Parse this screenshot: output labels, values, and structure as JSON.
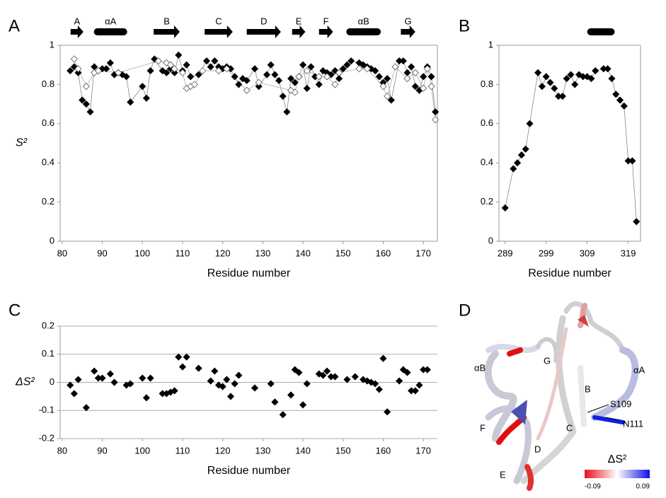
{
  "chart_data": [
    {
      "type": "scatter",
      "panel": "A",
      "x_label": "Residue number",
      "y_label": "S²",
      "xlim": [
        79.5,
        173.5
      ],
      "ylim": [
        0,
        1
      ],
      "xticks": [
        80,
        90,
        100,
        110,
        120,
        130,
        140,
        150,
        160,
        170
      ],
      "yticks": [
        0,
        0.2,
        0.4,
        0.6,
        0.8,
        1
      ],
      "grid": false,
      "frame": true,
      "secondary_structure": [
        {
          "label": "A",
          "type": "strand",
          "start": 82.1,
          "end": 85.3
        },
        {
          "label": "αA",
          "type": "helix",
          "start": 87.9,
          "end": 96.2
        },
        {
          "label": "B",
          "type": "strand",
          "start": 102.8,
          "end": 109.3
        },
        {
          "label": "C",
          "type": "strand",
          "start": 115.5,
          "end": 122.5
        },
        {
          "label": "D",
          "type": "strand",
          "start": 126,
          "end": 134.5
        },
        {
          "label": "E",
          "type": "strand",
          "start": 137.3,
          "end": 140.6
        },
        {
          "label": "F",
          "type": "strand",
          "start": 144,
          "end": 147.5
        },
        {
          "label": "αB",
          "type": "helix",
          "start": 150.8,
          "end": 159.4
        },
        {
          "label": "G",
          "type": "strand",
          "start": 164.4,
          "end": 168
        }
      ],
      "series": [
        {
          "color": "#000000",
          "marker": "filled",
          "line_color": "#888888",
          "x": [
            82,
            83,
            84,
            85,
            86,
            87,
            88,
            89,
            90,
            91,
            92,
            93,
            94,
            95,
            96,
            97,
            100,
            101,
            102,
            103,
            105,
            106,
            107,
            108,
            109,
            110,
            111,
            112,
            114,
            116,
            117,
            118,
            119,
            120,
            121,
            122,
            123,
            124,
            125,
            126,
            128,
            129,
            131,
            132,
            133,
            134,
            135,
            136,
            137,
            138,
            139,
            140,
            141,
            142,
            143,
            144,
            145,
            146,
            147,
            148,
            149,
            150,
            151,
            152,
            154,
            155,
            156,
            157,
            158,
            159,
            160,
            161,
            162,
            164,
            165,
            166,
            167,
            168,
            169,
            170,
            171,
            172,
            173
          ],
          "values": [
            0.87,
            0.89,
            0.86,
            0.72,
            0.7,
            0.66,
            0.89,
            0.87,
            0.88,
            0.88,
            0.91,
            0.85,
            0.86,
            0.85,
            0.84,
            0.71,
            0.79,
            0.73,
            0.87,
            0.93,
            0.87,
            0.86,
            0.88,
            0.86,
            0.95,
            0.87,
            0.9,
            0.84,
            0.85,
            0.92,
            0.89,
            0.92,
            0.89,
            0.88,
            0.89,
            0.88,
            0.84,
            0.8,
            0.83,
            0.82,
            0.88,
            0.79,
            0.85,
            0.9,
            0.85,
            0.82,
            0.74,
            0.66,
            0.83,
            0.81,
            0.84,
            0.9,
            0.78,
            0.89,
            0.84,
            0.8,
            0.87,
            0.86,
            0.85,
            0.87,
            0.83,
            0.88,
            0.9,
            0.92,
            0.91,
            0.9,
            0.89,
            0.88,
            0.87,
            0.84,
            0.81,
            0.83,
            0.72,
            0.92,
            0.92,
            0.86,
            0.89,
            0.79,
            0.77,
            0.84,
            0.89,
            0.84,
            0.66
          ]
        },
        {
          "color": "#555555",
          "marker": "open",
          "line_color": "#aaaaaa",
          "x": [
            83,
            84,
            86,
            88,
            89,
            94,
            104,
            106,
            107,
            108,
            110,
            111,
            112,
            113,
            115,
            119,
            121,
            126,
            129,
            137,
            138,
            139,
            141,
            144,
            146,
            148,
            149,
            154,
            156,
            160,
            161,
            163,
            166,
            168,
            170,
            171,
            172,
            173
          ],
          "values": [
            0.93,
            0.88,
            0.79,
            0.86,
            0.87,
            0.86,
            0.92,
            0.91,
            0.9,
            0.88,
            0.86,
            0.78,
            0.79,
            0.8,
            0.87,
            0.87,
            0.88,
            0.77,
            0.81,
            0.77,
            0.76,
            0.84,
            0.87,
            0.84,
            0.84,
            0.8,
            0.86,
            0.88,
            0.88,
            0.79,
            0.74,
            0.89,
            0.83,
            0.86,
            0.78,
            0.88,
            0.79,
            0.62
          ]
        }
      ]
    },
    {
      "type": "scatter",
      "panel": "B",
      "x_label": "Residue number",
      "xlim": [
        287.5,
        322
      ],
      "ylim": [
        0,
        1
      ],
      "xticks": [
        289,
        299,
        309,
        319
      ],
      "yticks": [
        0,
        0.2,
        0.4,
        0.6,
        0.8,
        1
      ],
      "grid": false,
      "frame": true,
      "secondary_structure": [
        {
          "type": "helix",
          "start": 309,
          "end": 315.7
        }
      ],
      "series": [
        {
          "color": "#000000",
          "marker": "filled",
          "line_color": "#888888",
          "x": [
            289,
            291,
            292,
            293,
            294,
            295,
            297,
            298,
            299,
            300,
            301,
            302,
            303,
            304,
            305,
            306,
            307,
            308,
            309,
            310,
            311,
            313,
            314,
            315,
            316,
            317,
            318,
            319,
            320,
            321
          ],
          "values": [
            0.17,
            0.37,
            0.4,
            0.44,
            0.47,
            0.6,
            0.86,
            0.79,
            0.84,
            0.81,
            0.78,
            0.74,
            0.74,
            0.83,
            0.85,
            0.8,
            0.85,
            0.84,
            0.84,
            0.83,
            0.87,
            0.88,
            0.88,
            0.83,
            0.75,
            0.72,
            0.69,
            0.41,
            0.41,
            0.1
          ]
        }
      ]
    },
    {
      "type": "scatter",
      "panel": "C",
      "x_label": "Residue number",
      "y_label": "ΔS²",
      "xlim": [
        79.5,
        173.5
      ],
      "ylim": [
        -0.2,
        0.2
      ],
      "xticks": [
        80,
        90,
        100,
        110,
        120,
        130,
        140,
        150,
        160,
        170
      ],
      "yticks": [
        -0.2,
        -0.1,
        0,
        0.1,
        0.2
      ],
      "grid": true,
      "frame": false,
      "series": [
        {
          "color": "#000000",
          "marker": "filled",
          "x": [
            82,
            83,
            84,
            86,
            88,
            89,
            90,
            92,
            93,
            96,
            97,
            100,
            101,
            102,
            105,
            106,
            107,
            108,
            109,
            110,
            111,
            114,
            117,
            118,
            119,
            120,
            121,
            122,
            123,
            124,
            128,
            132,
            133,
            135,
            137,
            138,
            139,
            140,
            141,
            144,
            145,
            146,
            147,
            148,
            151,
            153,
            155,
            156,
            157,
            158,
            159,
            160,
            161,
            164,
            165,
            166,
            167,
            168,
            169,
            170,
            171
          ],
          "values": [
            -0.01,
            -0.04,
            0.01,
            -0.09,
            0.04,
            0.015,
            0.015,
            0.03,
            0,
            -0.01,
            -0.005,
            0.015,
            -0.055,
            0.015,
            -0.04,
            -0.04,
            -0.035,
            -0.03,
            0.09,
            0.055,
            0.09,
            0.05,
            0.005,
            0.04,
            -0.01,
            -0.015,
            0.01,
            -0.05,
            -0.005,
            0.025,
            -0.02,
            -0.005,
            -0.07,
            -0.115,
            -0.045,
            0.045,
            0.035,
            -0.08,
            -0.005,
            0.03,
            0.025,
            0.04,
            0.02,
            0.02,
            0.01,
            0.02,
            0.01,
            0.005,
            0,
            -0.005,
            -0.025,
            0.085,
            -0.105,
            0.005,
            0.045,
            0.035,
            -0.03,
            -0.03,
            -0.01,
            0.045,
            0.045
          ]
        }
      ]
    }
  ],
  "structure": {
    "panel": "D",
    "labels": [
      "αB",
      "G",
      "αA",
      "B",
      "F",
      "C",
      "S109",
      "N111",
      "E",
      "D"
    ],
    "colorbar": {
      "title": "ΔS²",
      "min_label": "-0.09",
      "max_label": "0.09"
    }
  }
}
